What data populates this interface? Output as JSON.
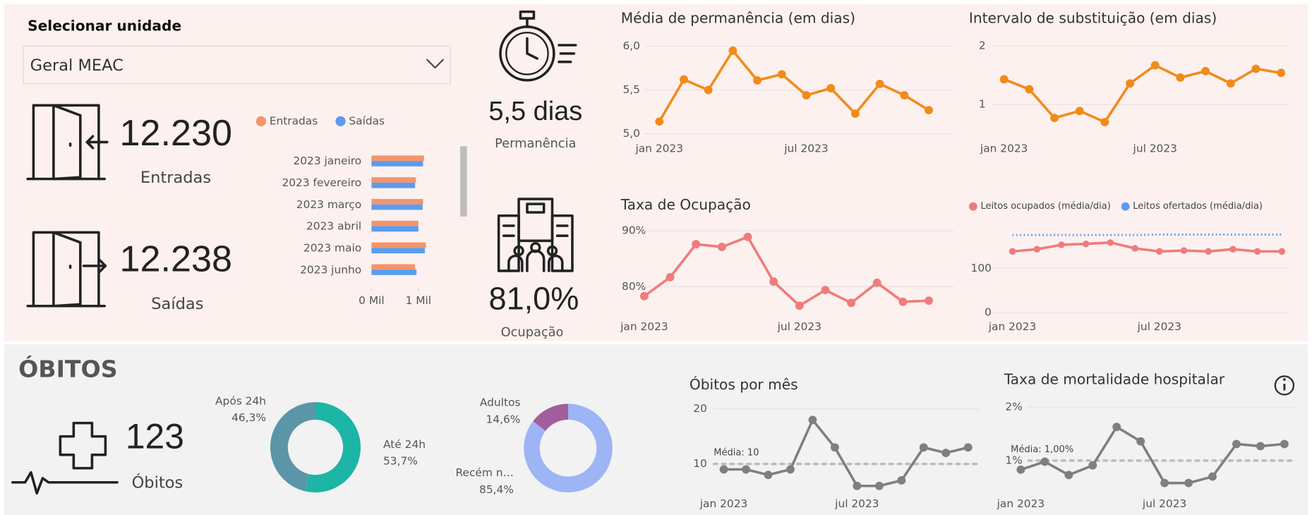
{
  "filter": {
    "label": "Selecionar unidade",
    "selected": "Geral MEAC"
  },
  "kpis": {
    "entradas": {
      "value": "12.230",
      "label": "Entradas"
    },
    "saidas": {
      "value": "12.238",
      "label": "Saídas"
    },
    "permanencia": {
      "value": "5,5 dias",
      "label": "Permanência"
    },
    "ocupacao": {
      "value": "81,0%",
      "label": "Ocupação"
    }
  },
  "obitos": {
    "title": "ÓBITOS",
    "value": "123",
    "label": "Óbitos"
  },
  "chart_data": [
    {
      "type": "bar",
      "orientation": "horizontal",
      "categories": [
        "2023 janeiro",
        "2023 fevereiro",
        "2023 março",
        "2023 abril",
        "2023 maio",
        "2023 junho"
      ],
      "series": [
        {
          "name": "Entradas",
          "color": "#f4956a",
          "values": [
            1.12,
            0.95,
            1.1,
            1.0,
            1.16,
            0.93
          ]
        },
        {
          "name": "Saídas",
          "color": "#5b9cf0",
          "values": [
            1.1,
            0.93,
            1.09,
            1.0,
            1.14,
            0.96
          ]
        }
      ],
      "xlim": [
        0,
        1.35
      ],
      "xticks": [
        {
          "value": 0,
          "label": "0 Mil"
        },
        {
          "value": 1,
          "label": "1 Mil"
        }
      ],
      "legend": "top"
    },
    {
      "type": "line",
      "title": "Média de permanência (em dias)",
      "categories": [
        "jan 2023",
        null,
        null,
        null,
        null,
        null,
        "jul 2023",
        null,
        null,
        null,
        null,
        null
      ],
      "values": [
        5.14,
        5.62,
        5.5,
        5.95,
        5.61,
        5.68,
        5.44,
        5.52,
        5.23,
        5.57,
        5.44,
        5.27
      ],
      "color": "#f28a1a",
      "ylim": [
        5.0,
        6.07
      ],
      "yticks": [
        {
          "value": 5.0,
          "label": "5,0"
        },
        {
          "value": 5.5,
          "label": "5,5"
        },
        {
          "value": 6.0,
          "label": "6,0"
        }
      ],
      "grid": true
    },
    {
      "type": "line",
      "title": "Intervalo de substituição (em dias)",
      "categories": [
        "jan 2023",
        null,
        null,
        null,
        null,
        null,
        "jul 2023",
        null,
        null,
        null,
        null,
        null
      ],
      "values": [
        1.43,
        1.26,
        0.77,
        0.89,
        0.7,
        1.36,
        1.67,
        1.46,
        1.57,
        1.36,
        1.61,
        1.54
      ],
      "color": "#f28a1a",
      "ylim": [
        0.5,
        2.1
      ],
      "yticks": [
        1,
        2
      ],
      "grid": true
    },
    {
      "type": "line",
      "title": "Taxa de Ocupação",
      "categories": [
        "jan 2023",
        null,
        null,
        null,
        null,
        null,
        "jul 2023",
        null,
        null,
        null,
        null,
        null
      ],
      "values": [
        78.3,
        81.7,
        87.6,
        87.1,
        88.9,
        80.9,
        76.6,
        79.4,
        77.1,
        80.7,
        77.3,
        77.5
      ],
      "color": "#f07b7b",
      "ylim": [
        75.2,
        92.1
      ],
      "yticks": [
        {
          "value": 80,
          "label": "80%"
        },
        {
          "value": 90,
          "label": "90%"
        }
      ],
      "grid": true
    },
    {
      "type": "line",
      "categories": [
        "jan 2023",
        null,
        null,
        null,
        null,
        null,
        "jul 2023",
        null,
        null,
        null,
        null,
        null
      ],
      "series": [
        {
          "name": "Leitos ocupados (média/dia)",
          "color": "#f07b7b",
          "style": "solid",
          "values": [
            138,
            143,
            153,
            155,
            158,
            145,
            138,
            140,
            138,
            143,
            138,
            138
          ]
        },
        {
          "name": "Leitos ofertados (média/dia)",
          "color": "#5b9cf0",
          "style": "dotted",
          "values": [
            175,
            175,
            175,
            175,
            175,
            175,
            176,
            176,
            176,
            176,
            176,
            176
          ]
        }
      ],
      "ylim": [
        0,
        211
      ],
      "yticks": [
        0,
        100
      ],
      "grid": true,
      "legend": "top-left"
    },
    {
      "type": "pie",
      "donut": true,
      "categories": [
        "Até 24h",
        "Após 24h"
      ],
      "values": [
        53.7,
        46.3
      ],
      "value_labels": [
        "53,7%",
        "46,3%"
      ],
      "colors": [
        "#1db5a5",
        "#5b96a8"
      ]
    },
    {
      "type": "pie",
      "donut": true,
      "categories": [
        "Recém n…",
        "Adultos"
      ],
      "values": [
        85.4,
        14.6
      ],
      "value_labels": [
        "85,4%",
        "14,6%"
      ],
      "colors": [
        "#9db4f5",
        "#a15d9c"
      ]
    },
    {
      "type": "line",
      "title": "Óbitos por mês",
      "categories": [
        "jan 2023",
        null,
        null,
        null,
        null,
        null,
        "jul 2023",
        null,
        null,
        null,
        null,
        null
      ],
      "values": [
        9,
        9,
        8,
        9,
        18,
        13,
        6,
        6,
        7,
        13,
        12,
        13
      ],
      "color": "#7f7f7f",
      "ylim": [
        3.9,
        21.4
      ],
      "yticks": [
        10,
        20
      ],
      "grid": true,
      "reference_line": {
        "value": 10,
        "label": "Média: 10"
      }
    },
    {
      "type": "line",
      "title": "Taxa de mortalidade hospitalar",
      "categories": [
        "jan 2023",
        null,
        null,
        null,
        null,
        null,
        "jul 2023",
        null,
        null,
        null,
        null,
        null
      ],
      "values": [
        0.83,
        0.98,
        0.73,
        0.91,
        1.63,
        1.36,
        0.58,
        0.58,
        0.7,
        1.31,
        1.27,
        1.31
      ],
      "color": "#7f7f7f",
      "ylim": [
        0.31,
        2.11
      ],
      "yticks": [
        {
          "value": 1,
          "label": "1%"
        },
        {
          "value": 2,
          "label": "2%"
        }
      ],
      "grid": true,
      "reference_line": {
        "value": 1.0,
        "label": "Média: 1,00%"
      }
    }
  ]
}
